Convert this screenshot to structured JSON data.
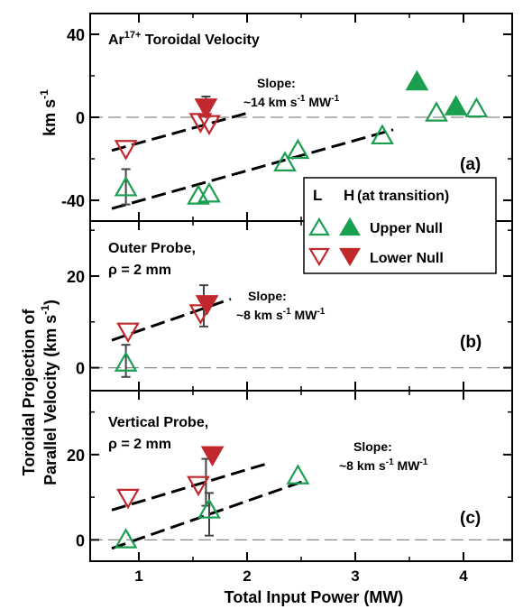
{
  "figure": {
    "xlabel": "Total Input Power (MW)",
    "x_ticks": [
      "1",
      "2",
      "3",
      "4"
    ],
    "shared_ylabel_line1": "Toroidal Projection of",
    "shared_ylabel_line2": "Parallel Velocity (km s",
    "shared_ylabel_sup": "-1",
    "shared_ylabel_close": ")",
    "legend": {
      "header_L": "L",
      "header_H": "H",
      "header_note": "(at transition)",
      "upper_null": "Upper Null",
      "lower_null": "Lower Null"
    },
    "colors": {
      "upper_null": "#1a9e50",
      "lower_null": "#c0282d",
      "axes": "#000000",
      "fit_line": "#000000",
      "zero_line": "#888888"
    }
  },
  "chart_data": [
    {
      "type": "scatter",
      "panel_label": "(a)",
      "title_main": "Ar",
      "title_sup": "17+",
      "title_rest": " Toroidal Velocity",
      "ylabel_main": "km s",
      "ylabel_sup": "-1",
      "y_ticks": [
        "40",
        "0",
        "-40"
      ],
      "xlim": [
        0.55,
        4.45
      ],
      "ylim": [
        -50,
        50
      ],
      "slope_label_line1": "Slope:",
      "slope_label_line2_prefix": "~14 km s",
      "slope_label_sup1": "-1",
      "slope_label_mid": " MW",
      "slope_label_sup2": "-1",
      "series": [
        {
          "name": "Upper Null",
          "mode": "L",
          "marker": "triangle-up-open",
          "x": [
            0.88,
            1.55,
            1.65,
            2.35,
            2.47,
            3.25,
            3.75,
            4.12
          ],
          "y": [
            -34,
            -38,
            -37,
            -22,
            -16,
            -9,
            2,
            4
          ]
        },
        {
          "name": "Upper Null",
          "mode": "H",
          "marker": "triangle-up-filled",
          "x": [
            3.57,
            3.93
          ],
          "y": [
            17,
            5
          ]
        },
        {
          "name": "Lower Null",
          "mode": "L",
          "marker": "triangle-down-open",
          "x": [
            0.88,
            1.57,
            1.65
          ],
          "y": [
            -15,
            -2,
            -3
          ]
        },
        {
          "name": "Lower Null",
          "mode": "H",
          "marker": "triangle-down-filled",
          "x": [
            1.62
          ],
          "y": [
            5
          ]
        }
      ],
      "error_bars": [
        {
          "x": 0.88,
          "y": -34,
          "low": -42,
          "high": -25
        },
        {
          "x": 1.62,
          "y": 5,
          "low": 3,
          "high": 10
        }
      ],
      "fits": [
        {
          "x": [
            0.75,
            2.0
          ],
          "y": [
            -16,
            2
          ]
        },
        {
          "x": [
            0.75,
            3.35
          ],
          "y": [
            -44,
            -6
          ]
        }
      ]
    },
    {
      "type": "scatter",
      "panel_label": "(b)",
      "title_line1": "Outer Probe,",
      "title_line2": "ρ = 2 mm",
      "y_ticks": [
        "20",
        "0"
      ],
      "xlim": [
        0.55,
        4.45
      ],
      "ylim": [
        -5,
        32
      ],
      "slope_label_line1": "Slope:",
      "slope_label_line2_prefix": "~8 km s",
      "slope_label_sup1": "-1",
      "slope_label_mid": " MW",
      "slope_label_sup2": "-1",
      "series": [
        {
          "name": "Upper Null",
          "mode": "L",
          "marker": "triangle-up-open",
          "x": [
            0.88
          ],
          "y": [
            1
          ]
        },
        {
          "name": "Lower Null",
          "mode": "L",
          "marker": "triangle-down-open",
          "x": [
            0.9,
            1.57
          ],
          "y": [
            8,
            12
          ]
        },
        {
          "name": "Lower Null",
          "mode": "H",
          "marker": "triangle-down-filled",
          "x": [
            1.63
          ],
          "y": [
            14
          ]
        }
      ],
      "error_bars": [
        {
          "x": 0.88,
          "y": 1,
          "low": -2,
          "high": 5
        },
        {
          "x": 1.6,
          "y": 13,
          "low": 9,
          "high": 18
        }
      ],
      "fits": [
        {
          "x": [
            0.75,
            1.85
          ],
          "y": [
            6,
            15
          ]
        }
      ]
    },
    {
      "type": "scatter",
      "panel_label": "(c)",
      "title_line1": "Vertical Probe,",
      "title_line2": "ρ = 2 mm",
      "y_ticks": [
        "20",
        "0"
      ],
      "xlim": [
        0.55,
        4.45
      ],
      "ylim": [
        -5,
        35
      ],
      "slope_label_line1": "Slope:",
      "slope_label_line2_prefix": "~8 km s",
      "slope_label_sup1": "-1",
      "slope_label_mid": " MW",
      "slope_label_sup2": "-1",
      "series": [
        {
          "name": "Upper Null",
          "mode": "L",
          "marker": "triangle-up-open",
          "x": [
            0.88,
            1.65,
            2.47
          ],
          "y": [
            0,
            7,
            15
          ]
        },
        {
          "name": "Lower Null",
          "mode": "L",
          "marker": "triangle-down-open",
          "x": [
            0.9,
            1.55
          ],
          "y": [
            10,
            13
          ]
        },
        {
          "name": "Lower Null",
          "mode": "H",
          "marker": "triangle-down-filled",
          "x": [
            1.68
          ],
          "y": [
            20
          ]
        }
      ],
      "error_bars": [
        {
          "x": 1.62,
          "y": 14,
          "low": 8,
          "high": 19
        },
        {
          "x": 1.65,
          "y": 6,
          "low": 1,
          "high": 11
        }
      ],
      "fits": [
        {
          "x": [
            0.75,
            2.2
          ],
          "y": [
            7,
            18
          ]
        },
        {
          "x": [
            0.75,
            2.55
          ],
          "y": [
            -2,
            14
          ]
        }
      ]
    }
  ]
}
